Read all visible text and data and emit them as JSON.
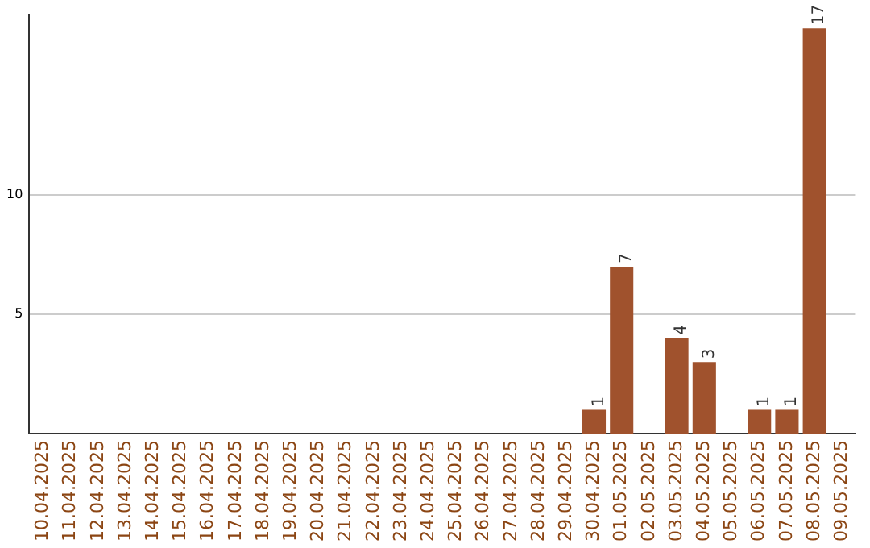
{
  "chart_data": {
    "type": "bar",
    "categories": [
      "10.04.2025",
      "11.04.2025",
      "12.04.2025",
      "13.04.2025",
      "14.04.2025",
      "15.04.2025",
      "16.04.2025",
      "17.04.2025",
      "18.04.2025",
      "19.04.2025",
      "20.04.2025",
      "21.04.2025",
      "22.04.2025",
      "23.04.2025",
      "24.04.2025",
      "25.04.2025",
      "26.04.2025",
      "27.04.2025",
      "28.04.2025",
      "29.04.2025",
      "30.04.2025",
      "01.05.2025",
      "02.05.2025",
      "03.05.2025",
      "04.05.2025",
      "05.05.2025",
      "06.05.2025",
      "07.05.2025",
      "08.05.2025",
      "09.05.2025"
    ],
    "values": [
      0,
      0,
      0,
      0,
      0,
      0,
      0,
      0,
      0,
      0,
      0,
      0,
      0,
      0,
      0,
      0,
      0,
      0,
      0,
      0,
      1,
      7,
      0,
      4,
      3,
      0,
      1,
      1,
      17,
      0
    ],
    "value_labels": [
      null,
      null,
      null,
      null,
      null,
      null,
      null,
      null,
      null,
      null,
      null,
      null,
      null,
      null,
      null,
      null,
      null,
      null,
      null,
      null,
      "1",
      "7",
      null,
      "4",
      "3",
      null,
      "1",
      "1",
      "17",
      null
    ],
    "color": "#a0522d",
    "ylim": [
      0,
      17.6
    ],
    "yticks": [
      5,
      10
    ],
    "grid": "y",
    "legend": false
  }
}
